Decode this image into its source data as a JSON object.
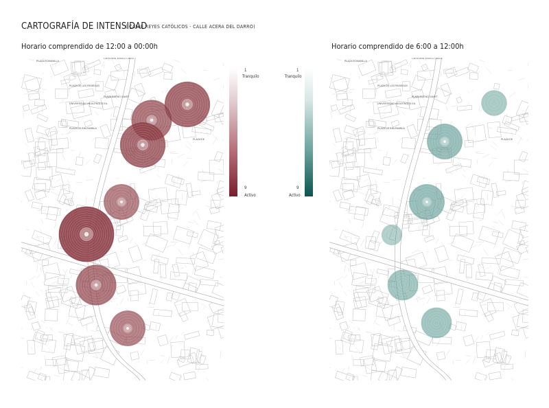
{
  "header": {
    "title": "CARTOGRAFÍA DE INTENSIDAD",
    "subtitle": "( CALLE REYES CATÓLICOS - CALLE ACERA DEL DARRO)"
  },
  "maps": [
    {
      "title": "Horario comprendido de 12:00 a 00:00h",
      "color": "#8a3a42",
      "legend": {
        "min_value": "1",
        "min_label": "Tranquilo",
        "max_value": "9",
        "max_label": "Activo",
        "color_light": "#ffffff",
        "color_dark": "#7a1f2c"
      },
      "street_labels": [
        "PLAZA ROMANILLA",
        "CATEDRAL ENGLO CALLE",
        "PLAZA DE LAS PASIEGAS",
        "PLAZA BUENO GAVET",
        "UNIVERSIDAD VIEJA ENGLO GIL",
        "PLAZA DE BIB-RAMBLA",
        "PLAZA DE"
      ],
      "circles": [
        {
          "intensity": 7
        },
        {
          "intensity": 6
        },
        {
          "intensity": 7
        },
        {
          "intensity": 5
        },
        {
          "intensity": 9
        },
        {
          "intensity": 6
        },
        {
          "intensity": 5
        }
      ]
    },
    {
      "title": "Horario comprendido de 6:00 a 12:00h",
      "color": "#5e9a93",
      "legend": {
        "min_value": "1",
        "min_label": "Tranquilo",
        "max_value": "9",
        "max_label": "Activo",
        "color_light": "#ffffff",
        "color_dark": "#0c5450"
      },
      "street_labels": [
        "PLAZA ROMANILLA",
        "CATEDRAL ENGLO CALLE",
        "PLAZA DE LAS PASIEGAS",
        "PLAZA BUENO GAVET",
        "UNIVERSIDAD VIEJA ENGLO GIL",
        "PLAZA DE BIB-RAMBLA",
        "PLAZA DE"
      ],
      "circles": [
        {
          "intensity": 3
        },
        {
          "intensity": 5
        },
        {
          "intensity": 5
        },
        {
          "intensity": 2
        },
        {
          "intensity": 4
        },
        {
          "intensity": 4
        }
      ]
    }
  ]
}
